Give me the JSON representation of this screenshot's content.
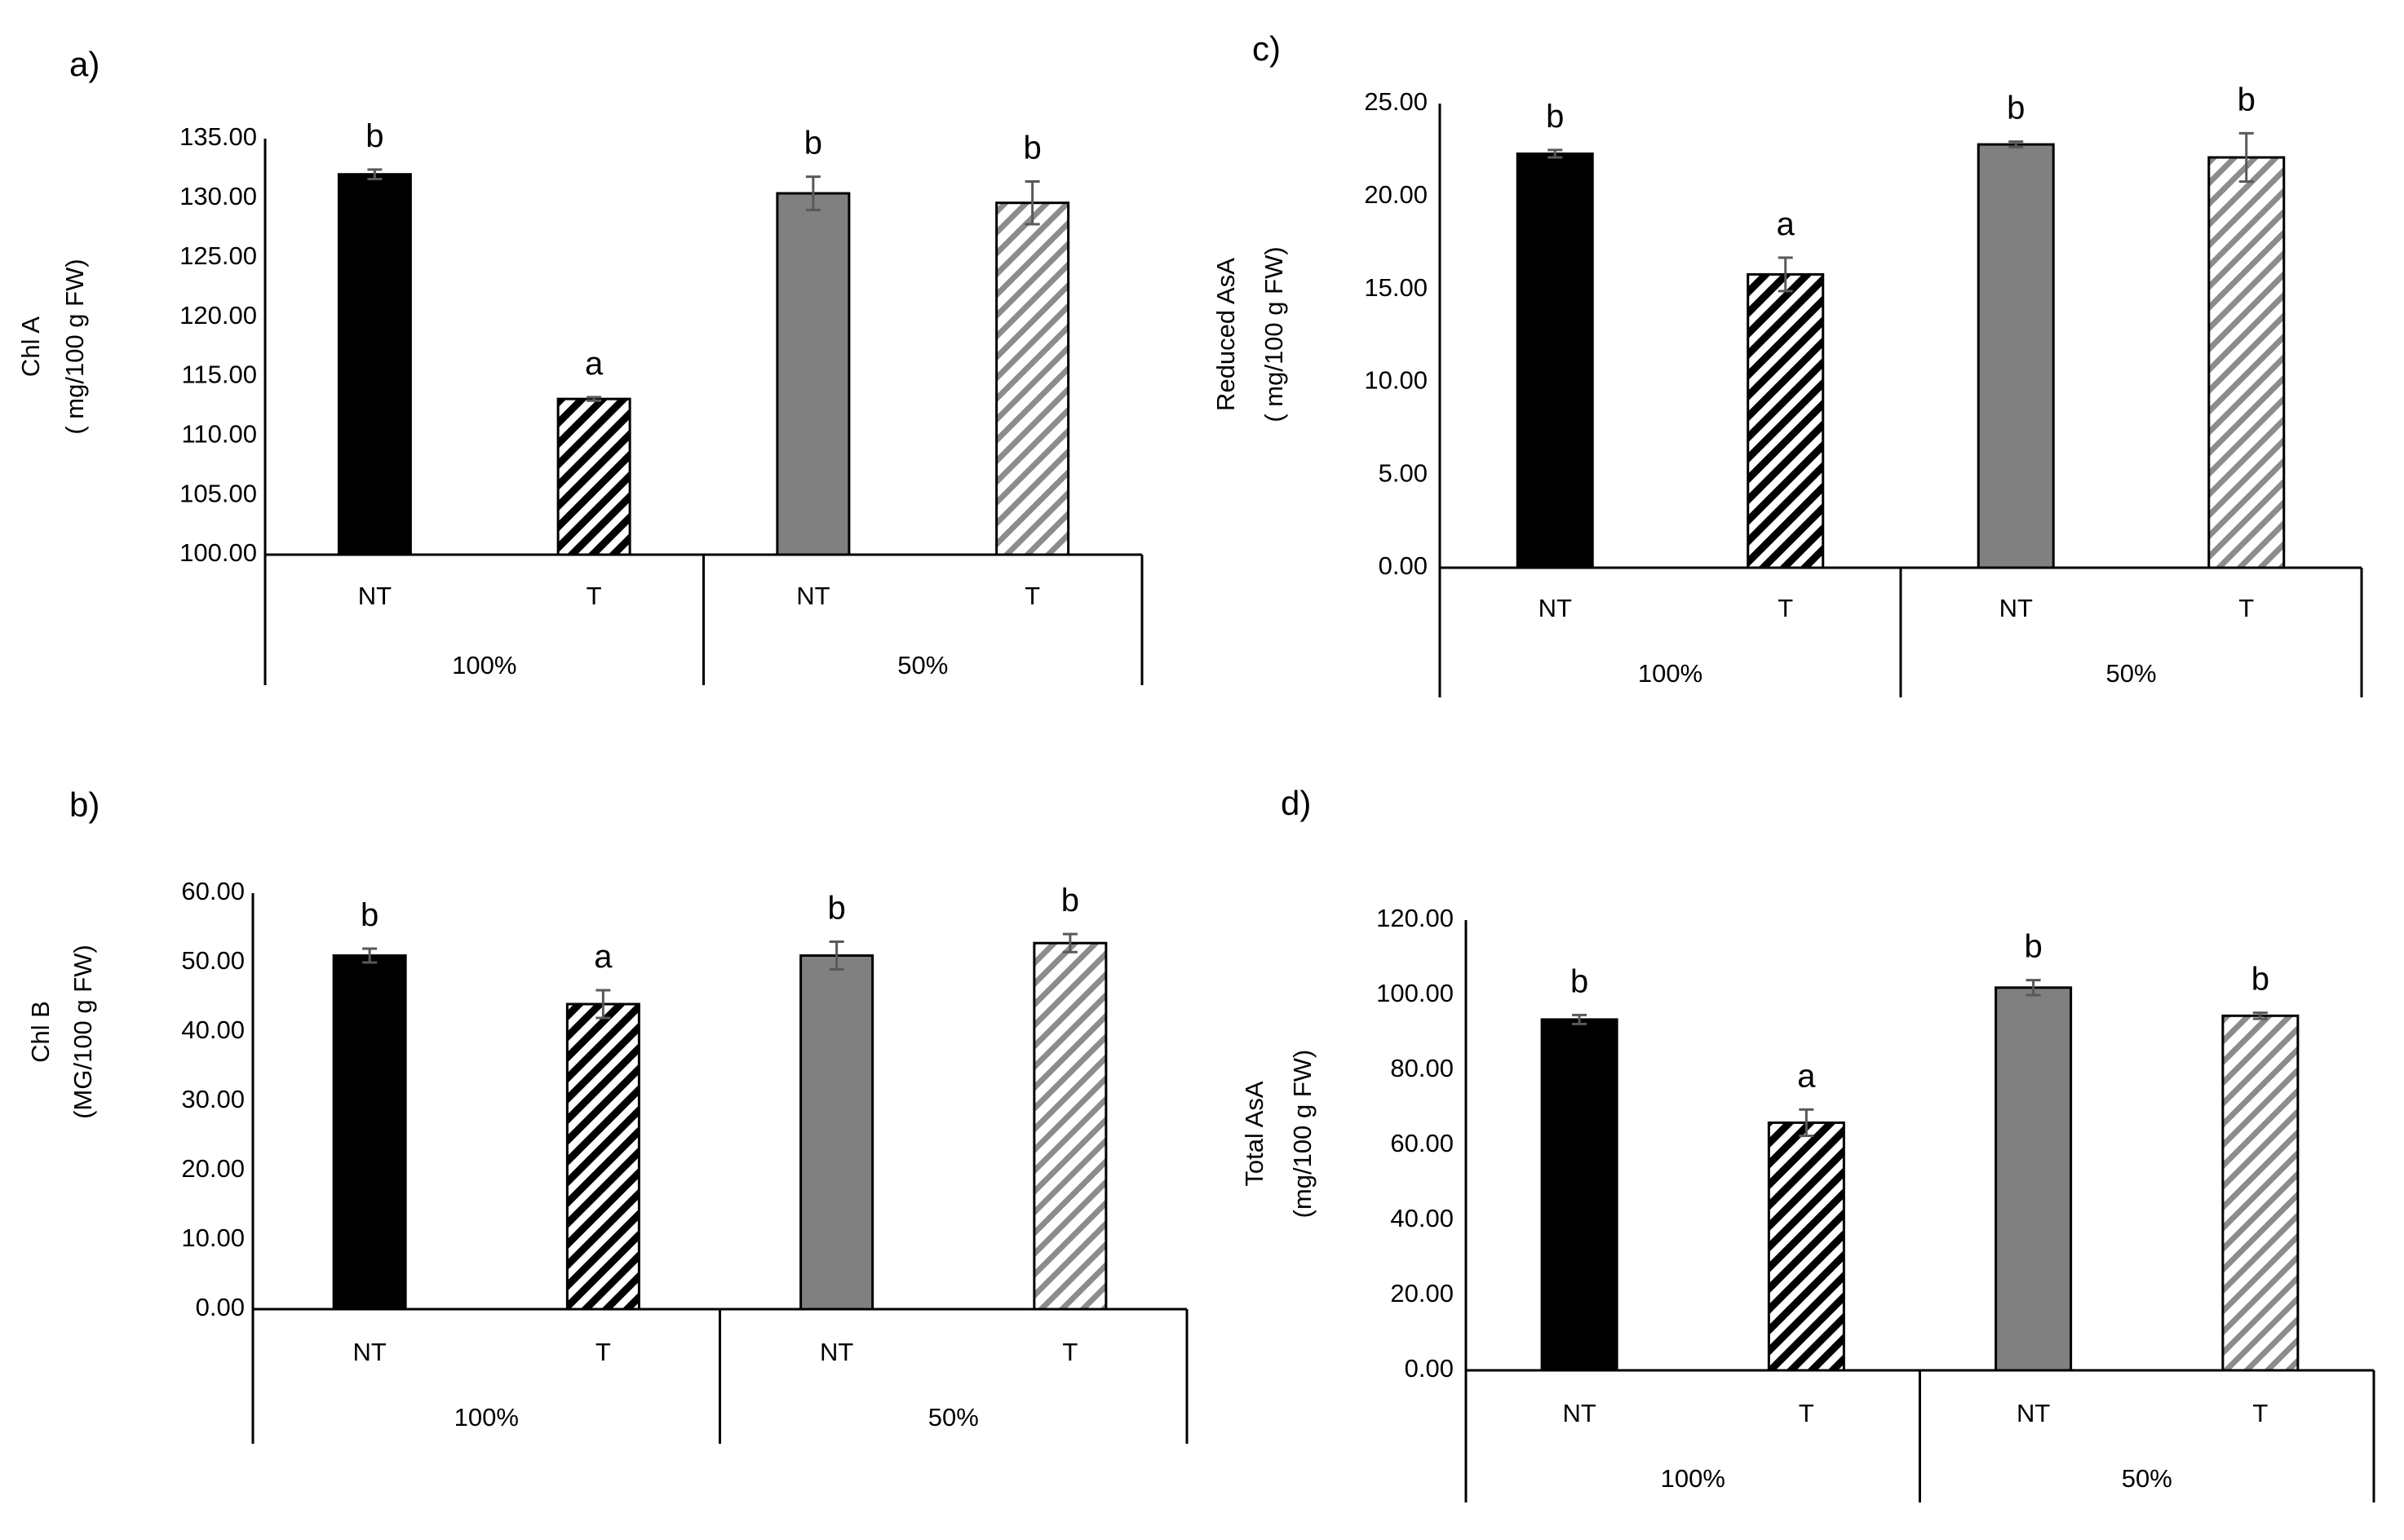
{
  "colors": {
    "axis": "#000000",
    "nt100": "#000000",
    "nt50": "#808080",
    "t100_hatch": "#000000",
    "t50_hatch": "#7f7f7f",
    "error_bar": "#595959"
  },
  "chart_data": [
    {
      "id": "a",
      "panel_label": "a)",
      "type": "bar",
      "ylabel_line1": "Chl A",
      "ylabel_line2": "( mg/100 g FW)",
      "ylim": [
        100,
        135
      ],
      "yticks": [
        "100.00",
        "105.00",
        "110.00",
        "115.00",
        "120.00",
        "125.00",
        "130.00",
        "135.00"
      ],
      "groups": [
        "100%",
        "50%"
      ],
      "categories": [
        "NT",
        "T",
        "NT",
        "T"
      ],
      "values": [
        132.0,
        113.1,
        130.4,
        129.6
      ],
      "errors": [
        0.4,
        0.15,
        1.4,
        1.8
      ],
      "letters": [
        "b",
        "a",
        "b",
        "b"
      ]
    },
    {
      "id": "b",
      "panel_label": "b)",
      "type": "bar",
      "ylabel_line1": "Chl B",
      "ylabel_line2": "(MG/100 g FW)",
      "ylim": [
        0,
        60
      ],
      "yticks": [
        "0.00",
        "10.00",
        "20.00",
        "30.00",
        "40.00",
        "50.00",
        "60.00"
      ],
      "groups": [
        "100%",
        "50%"
      ],
      "categories": [
        "NT",
        "T",
        "NT",
        "T"
      ],
      "values": [
        51.0,
        44.0,
        51.0,
        52.8
      ],
      "errors": [
        1.0,
        2.0,
        2.0,
        1.3
      ],
      "letters": [
        "b",
        "a",
        "b",
        "b"
      ]
    },
    {
      "id": "c",
      "panel_label": "c)",
      "type": "bar",
      "ylabel_line1": "Reduced AsA",
      "ylabel_line2": "( mg/100 g FW)",
      "ylim": [
        0,
        25
      ],
      "yticks": [
        "0.00",
        "5.00",
        "10.00",
        "15.00",
        "20.00",
        "25.00"
      ],
      "groups": [
        "100%",
        "50%"
      ],
      "categories": [
        "NT",
        "T",
        "NT",
        "T"
      ],
      "values": [
        22.3,
        15.8,
        22.8,
        22.1
      ],
      "errors": [
        0.2,
        0.9,
        0.15,
        1.3
      ],
      "letters": [
        "b",
        "a",
        "b",
        "b"
      ]
    },
    {
      "id": "d",
      "panel_label": "d)",
      "type": "bar",
      "ylabel_line1": "Total  AsA",
      "ylabel_line2": "(mg/100 g FW)",
      "ylim": [
        0,
        120
      ],
      "yticks": [
        "0.00",
        "20.00",
        "40.00",
        "60.00",
        "80.00",
        "100.00",
        "120.00"
      ],
      "groups": [
        "100%",
        "50%"
      ],
      "categories": [
        "NT",
        "T",
        "NT",
        "T"
      ],
      "values": [
        93.5,
        66.0,
        102.0,
        94.5
      ],
      "errors": [
        1.2,
        3.5,
        2.0,
        0.8
      ],
      "letters": [
        "b",
        "a",
        "b",
        "b"
      ]
    }
  ]
}
